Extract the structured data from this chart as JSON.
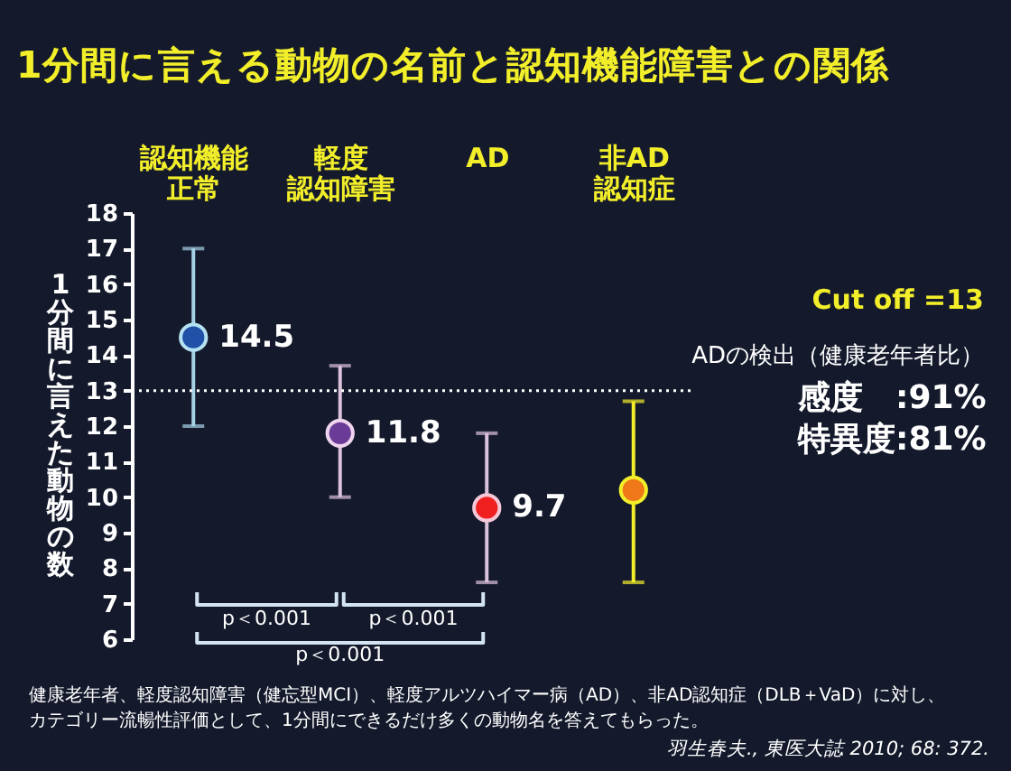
{
  "chart_data": {
    "type": "scatter",
    "title": "1分間に言える動物の名前と認知機能障害との関係",
    "ylabel": "1分間に言えた動物の数",
    "categories": [
      "認知機能正常",
      "軽度認知障害",
      "AD",
      "非AD認知症"
    ],
    "values": [
      14.5,
      11.8,
      9.7,
      10.2
    ],
    "errors": [
      [
        12.0,
        17.0
      ],
      [
        10.0,
        13.7
      ],
      [
        7.6,
        11.8
      ],
      [
        7.6,
        12.7
      ]
    ],
    "colors": [
      "#2050a8",
      "#6a3c98",
      "#f02020",
      "#f07818"
    ],
    "value_labels": [
      "14.5",
      "11.8",
      "9.7",
      null
    ],
    "ylim": [
      6,
      18
    ],
    "yticks": [
      6,
      7,
      8,
      9,
      10,
      11,
      12,
      13,
      14,
      15,
      16,
      17,
      18
    ],
    "marker": "circle",
    "ref_lines": [
      {
        "axis": "y",
        "value": 13,
        "color": "#ffffff",
        "line_style": "dotted"
      }
    ],
    "annotations": [
      "Cut off =13",
      "ADの検出（健康老年者比）",
      "感度　:91%",
      "特異度:81%",
      "p＜0.001",
      "p＜0.001",
      "p＜0.001",
      "健康老年者、軽度認知障害（健忘型MCI）、軽度アルツハイマー病（AD）、非AD認知症（DLB＋VaD）に対し、",
      "カテゴリー流暢性評価として、1分間にできるだけ多くの動物名を答えてもらった。",
      "羽生春夫., 東医大誌 2010; 68: 372."
    ]
  }
}
